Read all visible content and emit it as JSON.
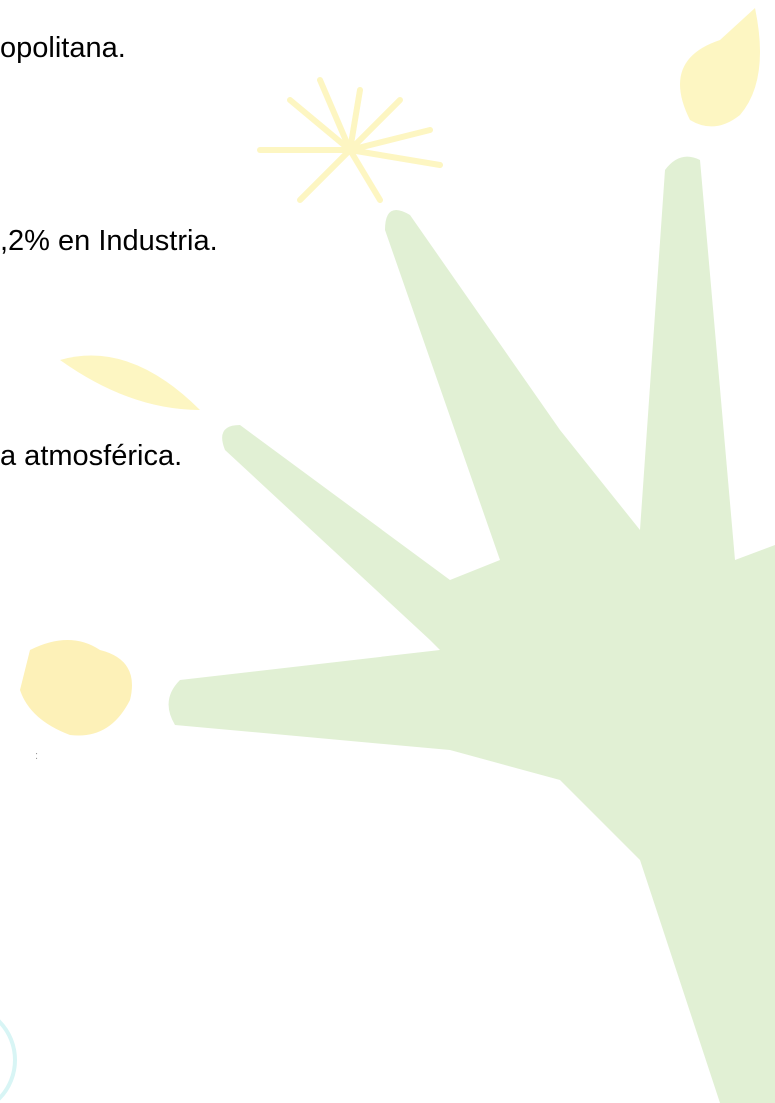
{
  "lines": [
    "opolitana.",
    ",2% en Industria.",
    "a atmosférica."
  ],
  "mark": ":"
}
